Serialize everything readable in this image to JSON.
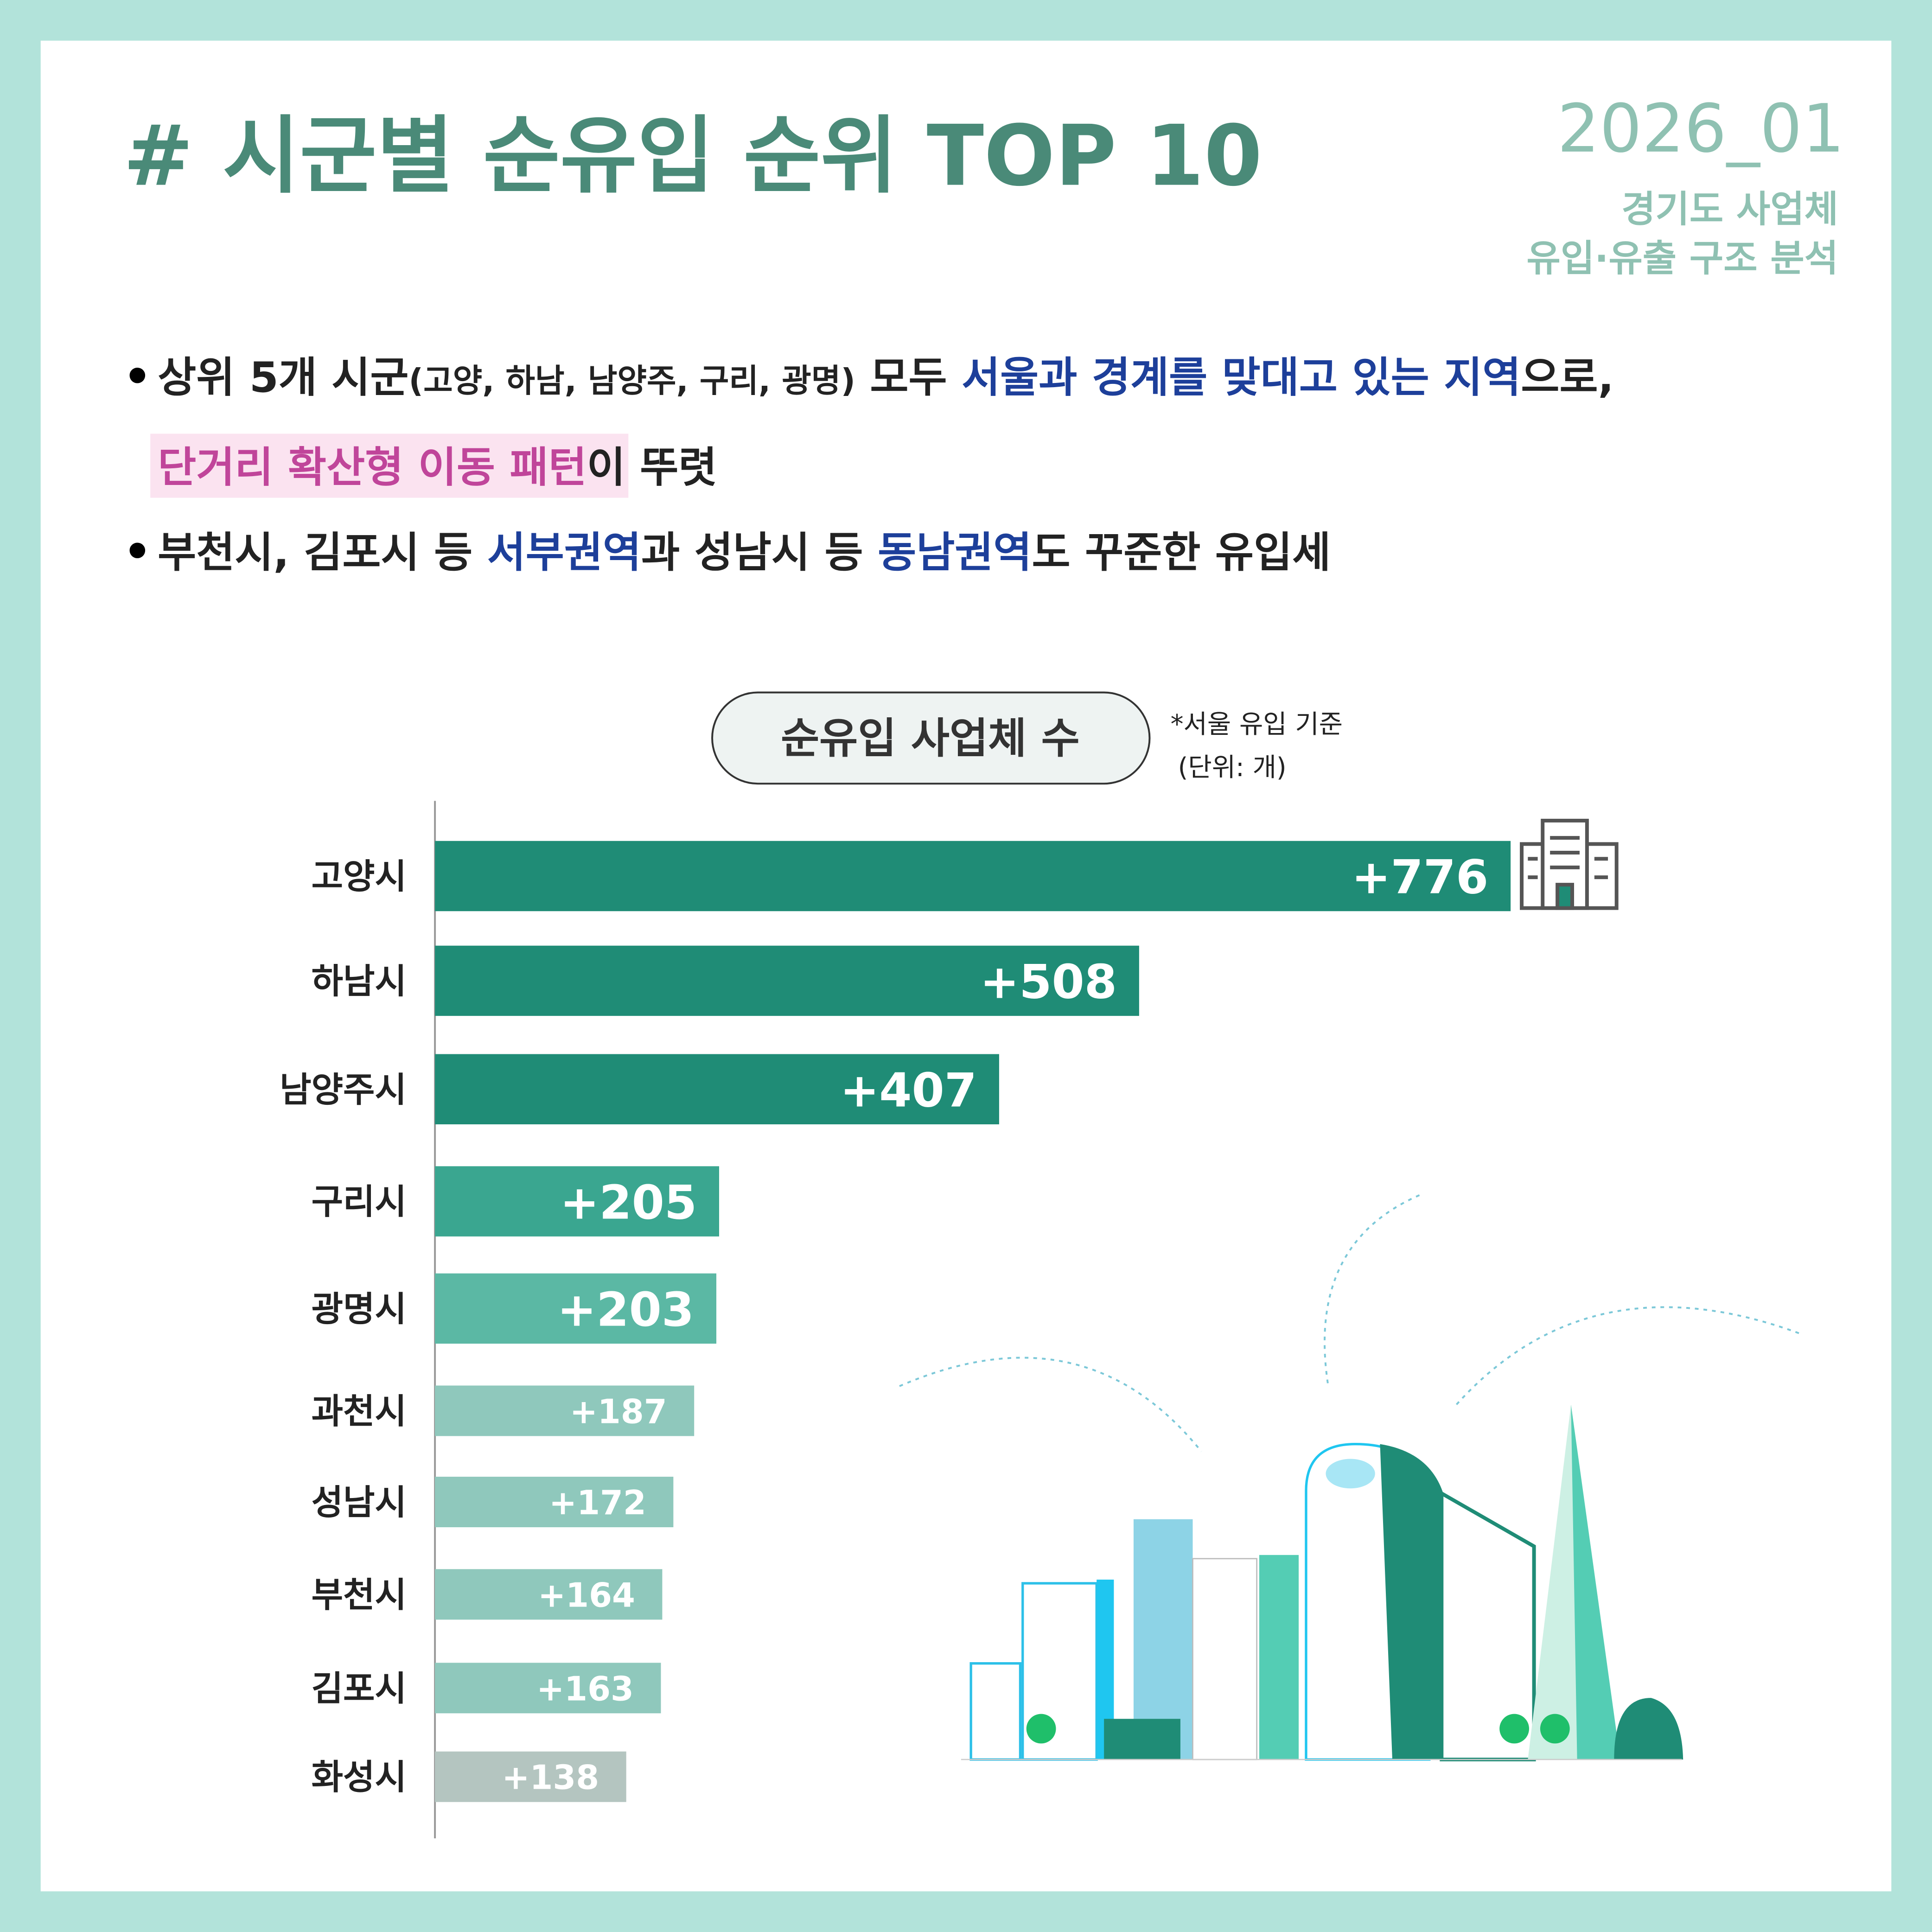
{
  "header": {
    "title": "# 시군별 순유입 순위 TOP 10",
    "date": "2026_01",
    "subtitle": [
      "경기도 사업체",
      "유입·유출 구조 분석"
    ]
  },
  "bullets": [
    {
      "lines": [
        [
          "상위 5개 시군",
          "(고양, 하남, 남양주, 구리, 광명)",
          " 모두 ",
          "서울과 경계를 맞대고 있는 지역",
          "으로,"
        ],
        [
          "단거리 확산형 이동 패턴",
          "이 뚜렷"
        ]
      ]
    },
    {
      "lines": [
        [
          "부천시, 김포시 등 ",
          "서부권역",
          "과 성남시 등 ",
          "동남권역",
          "도 꾸준한 유입세"
        ]
      ]
    }
  ],
  "chart_data": {
    "type": "bar",
    "orientation": "horizontal",
    "title": "순유입 사업체 수",
    "notes": [
      "*서울 유입 기준",
      "(단위: 개)"
    ],
    "categories": [
      "고양시",
      "하남시",
      "남양주시",
      "구리시",
      "광명시",
      "과천시",
      "성남시",
      "부천시",
      "김포시",
      "화성시"
    ],
    "values": [
      776,
      508,
      407,
      205,
      203,
      187,
      172,
      164,
      163,
      138
    ],
    "value_labels": [
      "+776",
      "+508",
      "+407",
      "+205",
      "+203",
      "+187",
      "+172",
      "+164",
      "+163",
      "+138"
    ],
    "colors": [
      "#1f8c76",
      "#1f8c76",
      "#1f8c76",
      "#3aa690",
      "#5bb8a4",
      "#8fc8bc",
      "#8fc8bc",
      "#8fc8bc",
      "#8fc8bc",
      "#b4c5c0"
    ]
  }
}
